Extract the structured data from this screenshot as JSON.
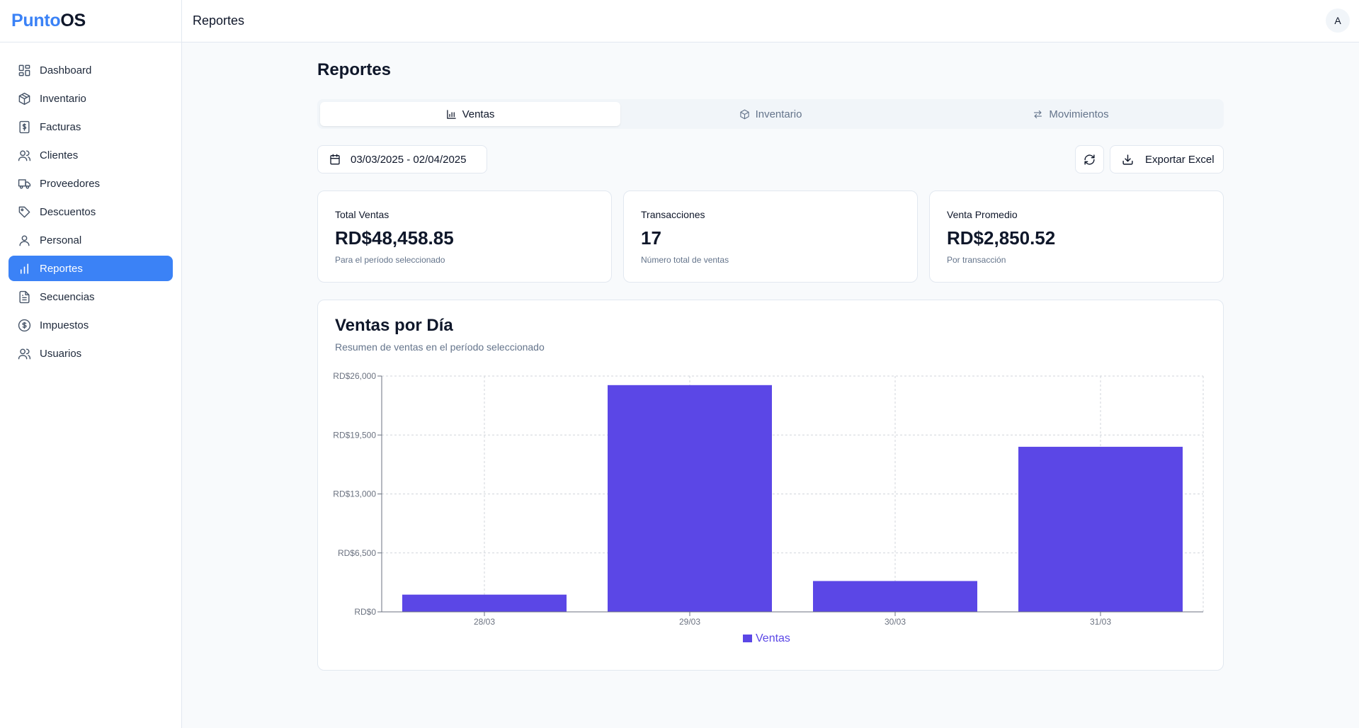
{
  "app": {
    "brand_part1": "Punto",
    "brand_part2": "OS",
    "accent_color": "#3b82f6"
  },
  "sidebar": {
    "items": [
      {
        "label": "Dashboard",
        "icon": "dashboard-icon",
        "active": false
      },
      {
        "label": "Inventario",
        "icon": "box-icon",
        "active": false
      },
      {
        "label": "Facturas",
        "icon": "invoice-icon",
        "active": false
      },
      {
        "label": "Clientes",
        "icon": "users-icon",
        "active": false
      },
      {
        "label": "Proveedores",
        "icon": "truck-icon",
        "active": false
      },
      {
        "label": "Descuentos",
        "icon": "tag-icon",
        "active": false
      },
      {
        "label": "Personal",
        "icon": "user-icon",
        "active": false
      },
      {
        "label": "Reportes",
        "icon": "bar-chart-icon",
        "active": true
      },
      {
        "label": "Secuencias",
        "icon": "file-text-icon",
        "active": false
      },
      {
        "label": "Impuestos",
        "icon": "dollar-circle-icon",
        "active": false
      },
      {
        "label": "Usuarios",
        "icon": "users-icon",
        "active": false
      }
    ]
  },
  "topbar": {
    "title": "Reportes",
    "avatar_initial": "A"
  },
  "page": {
    "title": "Reportes"
  },
  "tabs": [
    {
      "label": "Ventas",
      "icon": "bar-chart-icon",
      "active": true
    },
    {
      "label": "Inventario",
      "icon": "box-icon",
      "active": false
    },
    {
      "label": "Movimientos",
      "icon": "arrows-swap-icon",
      "active": false
    }
  ],
  "toolbar": {
    "date_range": "03/03/2025 - 02/04/2025",
    "export_label": "Exportar Excel"
  },
  "stats": [
    {
      "label": "Total Ventas",
      "value": "RD$48,458.85",
      "sub": "Para el período seleccionado"
    },
    {
      "label": "Transacciones",
      "value": "17",
      "sub": "Número total de ventas"
    },
    {
      "label": "Venta Promedio",
      "value": "RD$2,850.52",
      "sub": "Por transacción"
    }
  ],
  "chart": {
    "title": "Ventas por Día",
    "subtitle": "Resumen de ventas en el período seleccionado"
  },
  "chart_data": {
    "type": "bar",
    "categories": [
      "28/03",
      "29/03",
      "30/03",
      "31/03"
    ],
    "series": [
      {
        "name": "Ventas",
        "values": [
          1900,
          25000,
          3400,
          18200
        ],
        "color": "#5b47e6"
      }
    ],
    "ylim": [
      0,
      26000
    ],
    "y_ticks": [
      "RD$0",
      "RD$6,500",
      "RD$13,000",
      "RD$19,500",
      "RD$26,000"
    ],
    "y_tick_values": [
      0,
      6500,
      13000,
      19500,
      26000
    ],
    "grid": true,
    "legend": "bottom"
  }
}
